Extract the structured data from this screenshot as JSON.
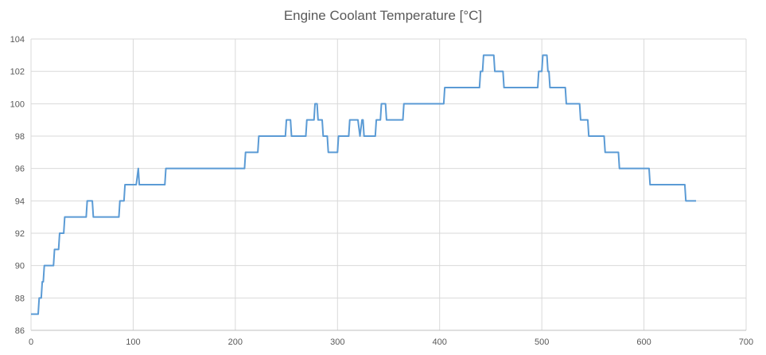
{
  "chart_data": {
    "type": "line",
    "title": "Engine Coolant Temperature [°C]",
    "xlabel": "",
    "ylabel": "",
    "xlim": [
      0,
      700
    ],
    "ylim": [
      86,
      104
    ],
    "x_ticks": [
      0,
      100,
      200,
      300,
      400,
      500,
      600,
      700
    ],
    "y_ticks": [
      86,
      88,
      90,
      92,
      94,
      96,
      98,
      100,
      102,
      104
    ],
    "grid": true,
    "legend": "none",
    "step": true,
    "series": [
      {
        "color": "#5b9bd5",
        "points": [
          [
            0,
            87
          ],
          [
            7,
            87
          ],
          [
            8,
            88
          ],
          [
            10,
            88
          ],
          [
            11,
            89
          ],
          [
            12,
            89
          ],
          [
            13,
            90
          ],
          [
            22,
            90
          ],
          [
            23,
            91
          ],
          [
            27,
            91
          ],
          [
            28,
            92
          ],
          [
            32,
            92
          ],
          [
            33,
            93
          ],
          [
            54,
            93
          ],
          [
            55,
            94
          ],
          [
            60,
            94
          ],
          [
            61,
            93
          ],
          [
            86,
            93
          ],
          [
            87,
            94
          ],
          [
            91,
            94
          ],
          [
            92,
            95
          ],
          [
            103,
            95
          ],
          [
            105,
            96
          ],
          [
            106,
            95
          ],
          [
            131,
            95
          ],
          [
            132,
            96
          ],
          [
            209,
            96
          ],
          [
            210,
            97
          ],
          [
            222,
            97
          ],
          [
            223,
            98
          ],
          [
            249,
            98
          ],
          [
            250,
            99
          ],
          [
            254,
            99
          ],
          [
            255,
            98
          ],
          [
            269,
            98
          ],
          [
            270,
            99
          ],
          [
            277,
            99
          ],
          [
            278,
            100
          ],
          [
            280,
            100
          ],
          [
            281,
            99
          ],
          [
            285,
            99
          ],
          [
            286,
            98
          ],
          [
            290,
            98
          ],
          [
            291,
            97
          ],
          [
            300,
            97
          ],
          [
            301,
            98
          ],
          [
            311,
            98
          ],
          [
            312,
            99
          ],
          [
            320,
            99
          ],
          [
            322,
            98
          ],
          [
            324,
            99
          ],
          [
            325,
            99
          ],
          [
            326,
            98
          ],
          [
            337,
            98
          ],
          [
            338,
            99
          ],
          [
            342,
            99
          ],
          [
            343,
            100
          ],
          [
            347,
            100
          ],
          [
            348,
            99
          ],
          [
            364,
            99
          ],
          [
            365,
            100
          ],
          [
            404,
            100
          ],
          [
            405,
            101
          ],
          [
            439,
            101
          ],
          [
            440,
            102
          ],
          [
            442,
            102
          ],
          [
            443,
            103
          ],
          [
            453,
            103
          ],
          [
            454,
            102
          ],
          [
            462,
            102
          ],
          [
            463,
            101
          ],
          [
            496,
            101
          ],
          [
            497,
            102
          ],
          [
            500,
            102
          ],
          [
            501,
            103
          ],
          [
            505,
            103
          ],
          [
            506,
            102
          ],
          [
            507,
            102
          ],
          [
            508,
            101
          ],
          [
            523,
            101
          ],
          [
            524,
            100
          ],
          [
            537,
            100
          ],
          [
            538,
            99
          ],
          [
            545,
            99
          ],
          [
            546,
            98
          ],
          [
            561,
            98
          ],
          [
            562,
            97
          ],
          [
            575,
            97
          ],
          [
            576,
            96
          ],
          [
            605,
            96
          ],
          [
            606,
            95
          ],
          [
            640,
            95
          ],
          [
            641,
            94
          ],
          [
            651,
            94
          ]
        ]
      }
    ]
  }
}
